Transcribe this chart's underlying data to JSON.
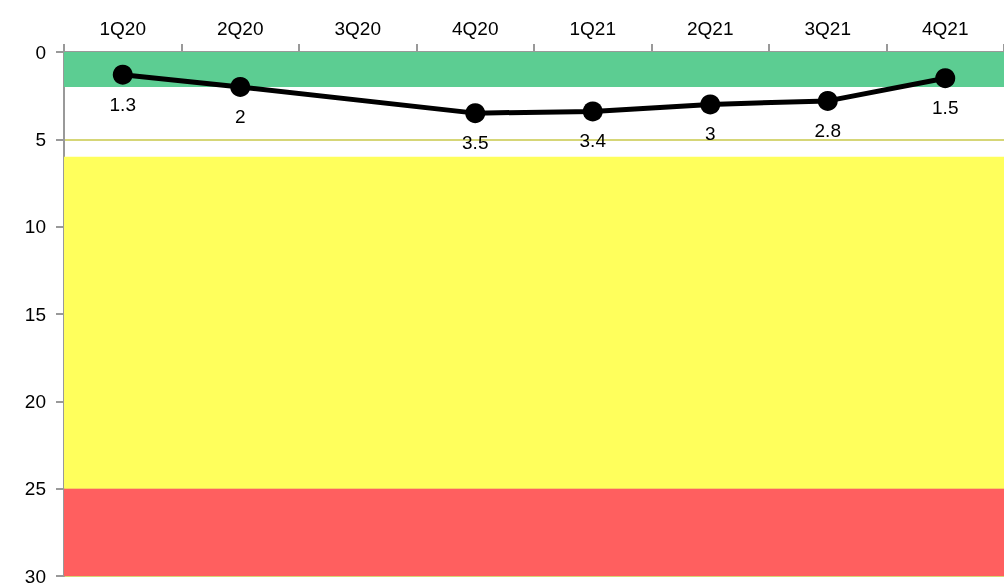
{
  "chart_data": {
    "type": "line",
    "categories": [
      "1Q20",
      "2Q20",
      "3Q20",
      "4Q20",
      "1Q21",
      "2Q21",
      "3Q21",
      "4Q21"
    ],
    "series": [
      {
        "color": "#000000",
        "values": [
          1.3,
          2,
          null,
          3.5,
          3.4,
          3,
          2.8,
          1.5
        ]
      }
    ],
    "ylim": [
      30,
      0
    ],
    "yticks": [
      0,
      5,
      10,
      15,
      20,
      25,
      30
    ],
    "grid": "y",
    "marker": "circle",
    "line_style": "solid",
    "data_labels": true,
    "bands": [
      {
        "axis": "y",
        "from": 0,
        "to": 2,
        "color": "#5ccd92"
      },
      {
        "axis": "y",
        "from": 6,
        "to": 25,
        "color": "#ffff5c"
      },
      {
        "axis": "y",
        "from": 25,
        "to": 30,
        "color": "#ff5f5f"
      }
    ]
  }
}
